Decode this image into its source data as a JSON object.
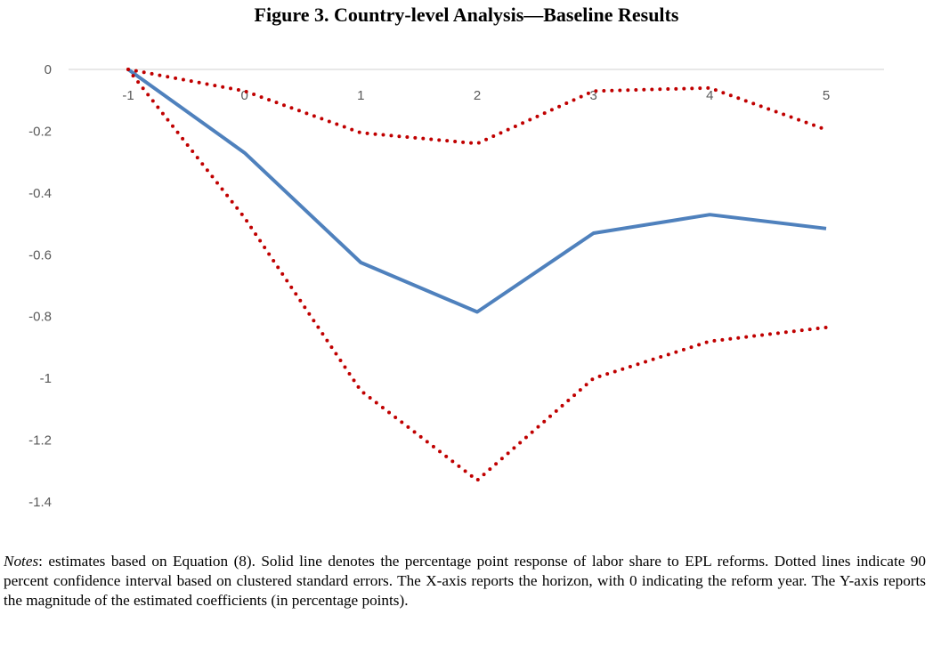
{
  "figure": {
    "title": "Figure 3. Country-level Analysis—Baseline Results"
  },
  "chart_data": {
    "type": "line",
    "x": [
      -1,
      0,
      1,
      2,
      3,
      4,
      5
    ],
    "x_tick_labels": [
      "-1",
      "0",
      "1",
      "2",
      "3",
      "4",
      "5"
    ],
    "y_tick_labels": [
      "0",
      "-0.2",
      "-0.4",
      "-0.6",
      "-0.8",
      "-1",
      "-1.2",
      "-1.4"
    ],
    "ylim": [
      -1.4,
      0
    ],
    "y_tick_values": [
      0,
      -0.2,
      -0.4,
      -0.6,
      -0.8,
      -1.0,
      -1.2,
      -1.4
    ],
    "series": [
      {
        "role": "estimate",
        "style": "solid",
        "color": "#4F81BD",
        "values": [
          0,
          -0.27,
          -0.625,
          -0.785,
          -0.53,
          -0.47,
          -0.515
        ]
      },
      {
        "role": "upper",
        "style": "dotted",
        "color": "#C00000",
        "values": [
          0,
          -0.07,
          -0.205,
          -0.24,
          -0.07,
          -0.06,
          -0.195
        ]
      },
      {
        "role": "lower",
        "style": "dotted",
        "color": "#C00000",
        "values": [
          0,
          -0.48,
          -1.04,
          -1.33,
          -1.0,
          -0.88,
          -0.835
        ]
      }
    ],
    "grid": false,
    "legend": "none"
  },
  "notes": {
    "label": "Notes",
    "text": ": estimates based on Equation (8). Solid line denotes the percentage point response of labor share to EPL reforms. Dotted lines indicate 90 percent confidence interval based on clustered standard errors. The X-axis reports the horizon, with 0 indicating the reform year. The Y-axis reports the magnitude of the estimated coefficients (in percentage points)."
  }
}
